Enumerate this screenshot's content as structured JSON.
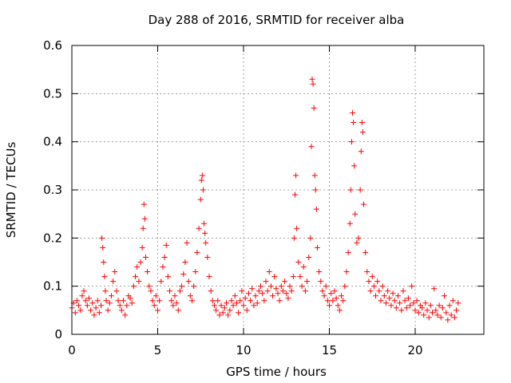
{
  "chart_data": {
    "type": "scatter",
    "title": "Day 288 of 2016, SRMTID for receiver alba",
    "xlabel": "GPS time / hours",
    "ylabel": "SRMTID / TECUs",
    "xlim": [
      0,
      24
    ],
    "ylim": [
      0,
      0.6
    ],
    "xticks": [
      0,
      5,
      10,
      15,
      20
    ],
    "xtick_labels": [
      "0",
      "5",
      "10",
      "15",
      "20"
    ],
    "yticks": [
      0,
      0.1,
      0.2,
      0.3,
      0.4,
      0.5,
      0.6
    ],
    "ytick_labels": [
      "0",
      "0.1",
      "0.2",
      "0.3",
      "0.4",
      "0.5",
      "0.6"
    ],
    "grid": true,
    "marker": "+",
    "color": "#ff0000",
    "series": [
      {
        "name": "SRMTID",
        "points": [
          [
            0.0,
            0.055
          ],
          [
            0.1,
            0.065
          ],
          [
            0.2,
            0.045
          ],
          [
            0.3,
            0.07
          ],
          [
            0.4,
            0.06
          ],
          [
            0.5,
            0.05
          ],
          [
            0.6,
            0.08
          ],
          [
            0.7,
            0.09
          ],
          [
            0.8,
            0.07
          ],
          [
            0.9,
            0.06
          ],
          [
            1.0,
            0.075
          ],
          [
            1.1,
            0.05
          ],
          [
            1.2,
            0.065
          ],
          [
            1.3,
            0.04
          ],
          [
            1.4,
            0.055
          ],
          [
            1.5,
            0.07
          ],
          [
            1.6,
            0.045
          ],
          [
            1.7,
            0.06
          ],
          [
            1.75,
            0.2
          ],
          [
            1.8,
            0.18
          ],
          [
            1.85,
            0.15
          ],
          [
            1.9,
            0.12
          ],
          [
            1.95,
            0.09
          ],
          [
            2.0,
            0.07
          ],
          [
            2.1,
            0.05
          ],
          [
            2.2,
            0.065
          ],
          [
            2.3,
            0.08
          ],
          [
            2.4,
            0.11
          ],
          [
            2.5,
            0.13
          ],
          [
            2.6,
            0.09
          ],
          [
            2.7,
            0.07
          ],
          [
            2.8,
            0.06
          ],
          [
            2.9,
            0.05
          ],
          [
            3.0,
            0.07
          ],
          [
            3.1,
            0.04
          ],
          [
            3.2,
            0.06
          ],
          [
            3.3,
            0.08
          ],
          [
            3.4,
            0.075
          ],
          [
            3.5,
            0.065
          ],
          [
            3.6,
            0.1
          ],
          [
            3.7,
            0.12
          ],
          [
            3.8,
            0.14
          ],
          [
            3.9,
            0.11
          ],
          [
            4.0,
            0.15
          ],
          [
            4.1,
            0.18
          ],
          [
            4.15,
            0.22
          ],
          [
            4.2,
            0.27
          ],
          [
            4.25,
            0.24
          ],
          [
            4.3,
            0.16
          ],
          [
            4.4,
            0.13
          ],
          [
            4.5,
            0.1
          ],
          [
            4.6,
            0.09
          ],
          [
            4.7,
            0.07
          ],
          [
            4.8,
            0.06
          ],
          [
            4.9,
            0.08
          ],
          [
            5.0,
            0.05
          ],
          [
            5.1,
            0.07
          ],
          [
            5.2,
            0.11
          ],
          [
            5.3,
            0.14
          ],
          [
            5.4,
            0.16
          ],
          [
            5.5,
            0.185
          ],
          [
            5.6,
            0.12
          ],
          [
            5.7,
            0.09
          ],
          [
            5.8,
            0.07
          ],
          [
            5.9,
            0.06
          ],
          [
            6.0,
            0.08
          ],
          [
            6.1,
            0.065
          ],
          [
            6.2,
            0.05
          ],
          [
            6.3,
            0.09
          ],
          [
            6.4,
            0.1
          ],
          [
            6.5,
            0.125
          ],
          [
            6.6,
            0.15
          ],
          [
            6.7,
            0.19
          ],
          [
            6.8,
            0.11
          ],
          [
            6.9,
            0.08
          ],
          [
            7.0,
            0.07
          ],
          [
            7.1,
            0.1
          ],
          [
            7.2,
            0.13
          ],
          [
            7.3,
            0.17
          ],
          [
            7.4,
            0.22
          ],
          [
            7.5,
            0.28
          ],
          [
            7.55,
            0.32
          ],
          [
            7.6,
            0.33
          ],
          [
            7.65,
            0.3
          ],
          [
            7.7,
            0.23
          ],
          [
            7.75,
            0.21
          ],
          [
            7.8,
            0.19
          ],
          [
            7.9,
            0.16
          ],
          [
            8.0,
            0.12
          ],
          [
            8.1,
            0.09
          ],
          [
            8.2,
            0.07
          ],
          [
            8.3,
            0.06
          ],
          [
            8.4,
            0.05
          ],
          [
            8.5,
            0.07
          ],
          [
            8.6,
            0.04
          ],
          [
            8.7,
            0.06
          ],
          [
            8.8,
            0.045
          ],
          [
            8.9,
            0.055
          ],
          [
            9.0,
            0.065
          ],
          [
            9.1,
            0.04
          ],
          [
            9.2,
            0.05
          ],
          [
            9.3,
            0.07
          ],
          [
            9.4,
            0.06
          ],
          [
            9.5,
            0.08
          ],
          [
            9.6,
            0.065
          ],
          [
            9.7,
            0.045
          ],
          [
            9.8,
            0.07
          ],
          [
            9.9,
            0.09
          ],
          [
            10.0,
            0.06
          ],
          [
            10.1,
            0.075
          ],
          [
            10.2,
            0.05
          ],
          [
            10.3,
            0.085
          ],
          [
            10.4,
            0.07
          ],
          [
            10.5,
            0.095
          ],
          [
            10.6,
            0.06
          ],
          [
            10.7,
            0.08
          ],
          [
            10.8,
            0.065
          ],
          [
            10.9,
            0.09
          ],
          [
            11.0,
            0.1
          ],
          [
            11.1,
            0.085
          ],
          [
            11.2,
            0.07
          ],
          [
            11.3,
            0.11
          ],
          [
            11.4,
            0.09
          ],
          [
            11.5,
            0.13
          ],
          [
            11.6,
            0.1
          ],
          [
            11.7,
            0.08
          ],
          [
            11.8,
            0.12
          ],
          [
            11.9,
            0.095
          ],
          [
            12.0,
            0.085
          ],
          [
            12.1,
            0.07
          ],
          [
            12.2,
            0.1
          ],
          [
            12.3,
            0.09
          ],
          [
            12.4,
            0.11
          ],
          [
            12.5,
            0.085
          ],
          [
            12.6,
            0.075
          ],
          [
            12.7,
            0.1
          ],
          [
            12.8,
            0.09
          ],
          [
            12.9,
            0.12
          ],
          [
            12.95,
            0.2
          ],
          [
            13.0,
            0.29
          ],
          [
            13.05,
            0.33
          ],
          [
            13.1,
            0.22
          ],
          [
            13.2,
            0.15
          ],
          [
            13.3,
            0.12
          ],
          [
            13.4,
            0.1
          ],
          [
            13.5,
            0.14
          ],
          [
            13.6,
            0.09
          ],
          [
            13.7,
            0.11
          ],
          [
            13.8,
            0.16
          ],
          [
            13.9,
            0.2
          ],
          [
            13.95,
            0.39
          ],
          [
            14.0,
            0.53
          ],
          [
            14.05,
            0.52
          ],
          [
            14.1,
            0.47
          ],
          [
            14.15,
            0.33
          ],
          [
            14.2,
            0.3
          ],
          [
            14.25,
            0.26
          ],
          [
            14.3,
            0.18
          ],
          [
            14.4,
            0.13
          ],
          [
            14.5,
            0.11
          ],
          [
            14.6,
            0.09
          ],
          [
            14.7,
            0.08
          ],
          [
            14.8,
            0.1
          ],
          [
            14.9,
            0.07
          ],
          [
            15.0,
            0.06
          ],
          [
            15.1,
            0.085
          ],
          [
            15.2,
            0.07
          ],
          [
            15.3,
            0.09
          ],
          [
            15.4,
            0.075
          ],
          [
            15.5,
            0.06
          ],
          [
            15.6,
            0.05
          ],
          [
            15.7,
            0.08
          ],
          [
            15.8,
            0.07
          ],
          [
            15.9,
            0.1
          ],
          [
            16.0,
            0.13
          ],
          [
            16.1,
            0.17
          ],
          [
            16.2,
            0.23
          ],
          [
            16.25,
            0.3
          ],
          [
            16.3,
            0.4
          ],
          [
            16.35,
            0.46
          ],
          [
            16.4,
            0.44
          ],
          [
            16.45,
            0.35
          ],
          [
            16.5,
            0.25
          ],
          [
            16.6,
            0.19
          ],
          [
            16.7,
            0.2
          ],
          [
            16.8,
            0.3
          ],
          [
            16.85,
            0.38
          ],
          [
            16.9,
            0.44
          ],
          [
            16.95,
            0.42
          ],
          [
            17.0,
            0.27
          ],
          [
            17.1,
            0.17
          ],
          [
            17.2,
            0.13
          ],
          [
            17.3,
            0.11
          ],
          [
            17.4,
            0.09
          ],
          [
            17.5,
            0.12
          ],
          [
            17.6,
            0.1
          ],
          [
            17.7,
            0.08
          ],
          [
            17.8,
            0.11
          ],
          [
            17.9,
            0.09
          ],
          [
            18.0,
            0.07
          ],
          [
            18.1,
            0.1
          ],
          [
            18.2,
            0.08
          ],
          [
            18.3,
            0.065
          ],
          [
            18.4,
            0.09
          ],
          [
            18.5,
            0.075
          ],
          [
            18.6,
            0.06
          ],
          [
            18.7,
            0.085
          ],
          [
            18.8,
            0.07
          ],
          [
            18.9,
            0.055
          ],
          [
            19.0,
            0.08
          ],
          [
            19.1,
            0.065
          ],
          [
            19.2,
            0.05
          ],
          [
            19.3,
            0.09
          ],
          [
            19.4,
            0.07
          ],
          [
            19.5,
            0.055
          ],
          [
            19.6,
            0.075
          ],
          [
            19.7,
            0.06
          ],
          [
            19.8,
            0.1
          ],
          [
            19.9,
            0.065
          ],
          [
            20.0,
            0.05
          ],
          [
            20.1,
            0.07
          ],
          [
            20.2,
            0.045
          ],
          [
            20.3,
            0.06
          ],
          [
            20.4,
            0.055
          ],
          [
            20.5,
            0.04
          ],
          [
            20.6,
            0.065
          ],
          [
            20.7,
            0.05
          ],
          [
            20.8,
            0.035
          ],
          [
            20.9,
            0.06
          ],
          [
            21.0,
            0.045
          ],
          [
            21.1,
            0.095
          ],
          [
            21.2,
            0.05
          ],
          [
            21.3,
            0.04
          ],
          [
            21.4,
            0.06
          ],
          [
            21.5,
            0.035
          ],
          [
            21.6,
            0.055
          ],
          [
            21.7,
            0.08
          ],
          [
            21.8,
            0.045
          ],
          [
            21.9,
            0.03
          ],
          [
            22.0,
            0.06
          ],
          [
            22.1,
            0.04
          ],
          [
            22.2,
            0.07
          ],
          [
            22.3,
            0.035
          ],
          [
            22.4,
            0.05
          ],
          [
            22.5,
            0.065
          ]
        ]
      }
    ]
  }
}
